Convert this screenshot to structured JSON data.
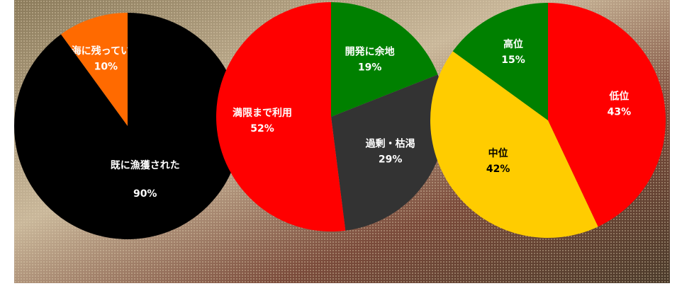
{
  "chart_data": [
    {
      "type": "pie",
      "direction": "counterclockwise",
      "categories": [
        "海に残っている",
        "既に漁獲された"
      ],
      "values": [
        10,
        90
      ],
      "value_labels": [
        "10%",
        "90%"
      ],
      "colors": [
        "#ff6a00",
        "#000000"
      ]
    },
    {
      "type": "pie",
      "direction": "clockwise",
      "categories": [
        "開発に余地",
        "過剰・枯渇",
        "満限まで利用"
      ],
      "values": [
        19,
        29,
        52
      ],
      "value_labels": [
        "19%",
        "29%",
        "52%"
      ],
      "colors": [
        "#008000",
        "#333333",
        "#ff0000"
      ]
    },
    {
      "type": "pie",
      "direction": "clockwise",
      "categories": [
        "低位",
        "中位",
        "高位"
      ],
      "values": [
        43,
        42,
        15
      ],
      "value_labels": [
        "43%",
        "42%",
        "15%"
      ],
      "colors": [
        "#ff0000",
        "#ffcc00",
        "#008000"
      ]
    }
  ]
}
